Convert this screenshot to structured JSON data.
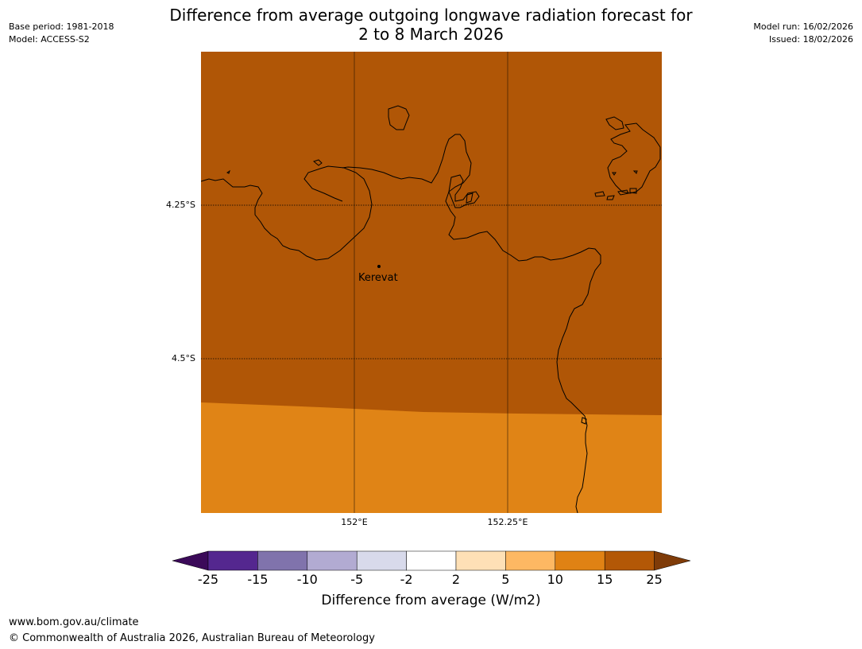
{
  "title": {
    "line1": "Difference from average outgoing longwave radiation forecast for",
    "line2": "2 to 8 March 2026"
  },
  "meta_left": {
    "base_period": "Base period: 1981-2018",
    "model": "Model: ACCESS-S2"
  },
  "meta_right": {
    "model_run": "Model run: 16/02/2026",
    "issued": "Issued: 18/02/2026"
  },
  "map": {
    "y_labels": [
      "4.25°S",
      "4.5°S"
    ],
    "x_labels": [
      "152°E",
      "152.25°E"
    ],
    "place": "Kerevat",
    "colors": {
      "band_15_25": "#b05606",
      "band_10_15": "#e08416",
      "coast": "#000000"
    }
  },
  "colorbar": {
    "title": "Difference from average (W/m2)",
    "ticks": [
      "-25",
      "-15",
      "-10",
      "-5",
      "-2",
      "2",
      "5",
      "10",
      "15",
      "25"
    ],
    "colors": [
      "#3b0a59",
      "#54278f",
      "#8073ac",
      "#b2abd2",
      "#d8daeb",
      "#ffffff",
      "#fee0b6",
      "#fdb863",
      "#e08214",
      "#b35806",
      "#7f3b08"
    ]
  },
  "footer": {
    "url": "www.bom.gov.au/climate",
    "copyright": "© Commonwealth of Australia 2026, Australian Bureau of Meteorology"
  }
}
